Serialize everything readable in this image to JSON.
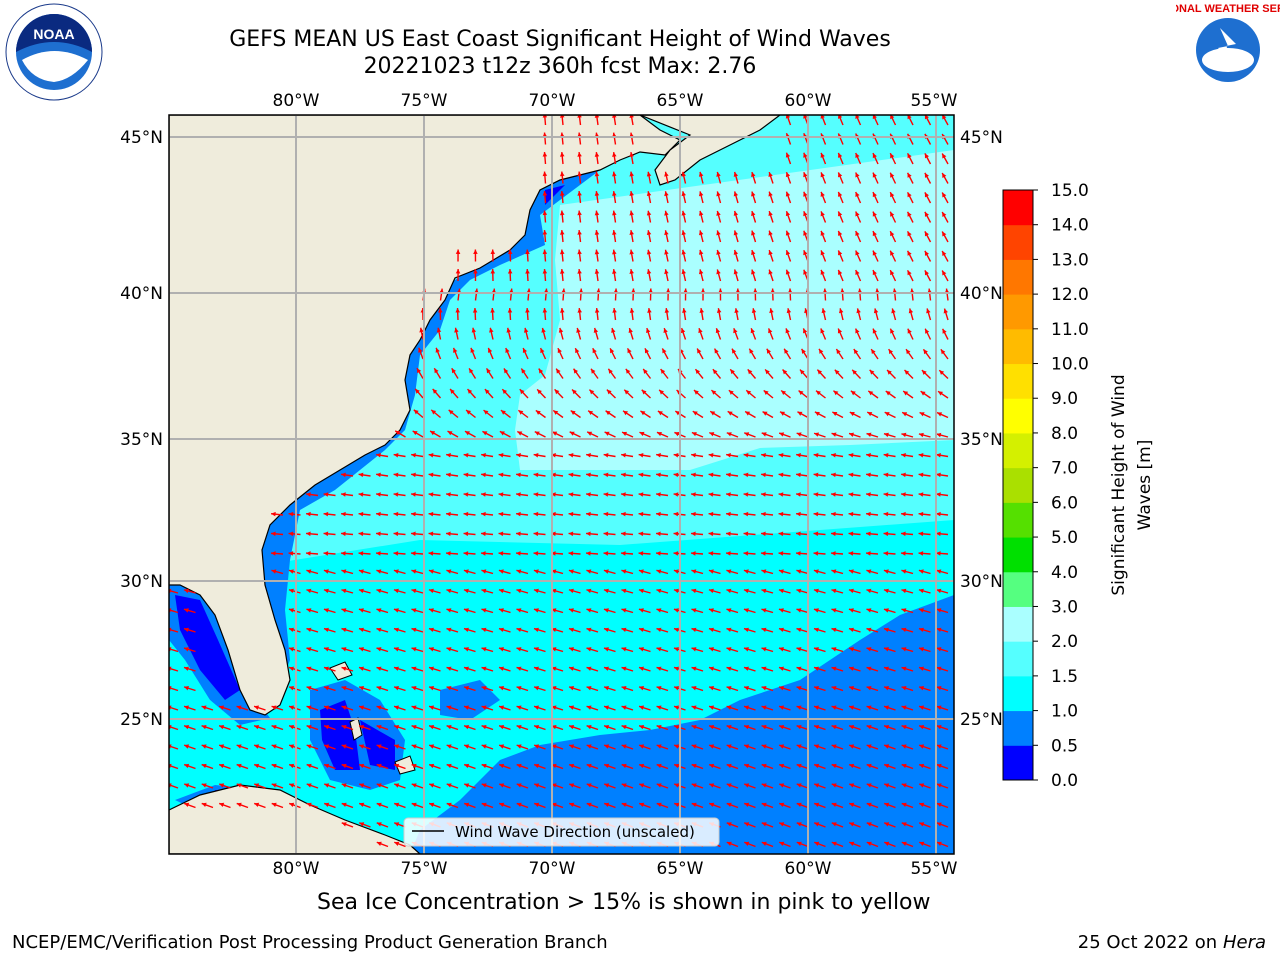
{
  "header": {
    "title_line1": "GEFS MEAN US East Coast Significant Height of Wind Waves",
    "title_line2": "20221023 t12z 360h fcst   Max: 2.76"
  },
  "map": {
    "lon_labels": [
      "80°W",
      "75°W",
      "70°W",
      "65°W",
      "60°W",
      "55°W"
    ],
    "lat_labels": [
      "45°N",
      "40°N",
      "35°N",
      "30°N",
      "25°N"
    ],
    "legend_text": "Wind Wave Direction (unscaled)",
    "colors": {
      "land": "#efecdc",
      "coast": "#000000",
      "grid": "#b0b0b0",
      "arrow": "#ff0000",
      "sea_0_0_5": "#0000ff",
      "sea_0_5_1": "#0080ff",
      "sea_1_1_5": "#00ffff",
      "sea_1_5_2": "#55ffff",
      "sea_2_3": "#aaffff"
    }
  },
  "colorbar": {
    "label": "Significant Height of Wind Waves [m]",
    "label_line1": "Significant Height of Wind",
    "label_line2": "Waves [m]",
    "ticks": [
      "0.0",
      "0.5",
      "1.0",
      "1.5",
      "2.0",
      "3.0",
      "4.0",
      "5.0",
      "6.0",
      "7.0",
      "8.0",
      "9.0",
      "10.0",
      "11.0",
      "12.0",
      "13.0",
      "14.0",
      "15.0"
    ],
    "colors": [
      "#0000ff",
      "#0080ff",
      "#00ffff",
      "#55ffff",
      "#aaffff",
      "#55ff80",
      "#00e000",
      "#55e000",
      "#aae000",
      "#d4f000",
      "#ffff00",
      "#ffe000",
      "#ffbb00",
      "#ff9900",
      "#ff7700",
      "#ff4400",
      "#ff0000"
    ]
  },
  "caption": "Sea Ice Concentration > 15% is shown in pink to yellow",
  "footer": {
    "left": "NCEP/EMC/Verification Post Processing Product Generation Branch",
    "right_prefix": "25 Oct 2022 on ",
    "right_host": "Hera"
  },
  "logos": {
    "noaa_text": "NOAA",
    "nws_text": "NATIONAL WEATHER SERVICE"
  }
}
